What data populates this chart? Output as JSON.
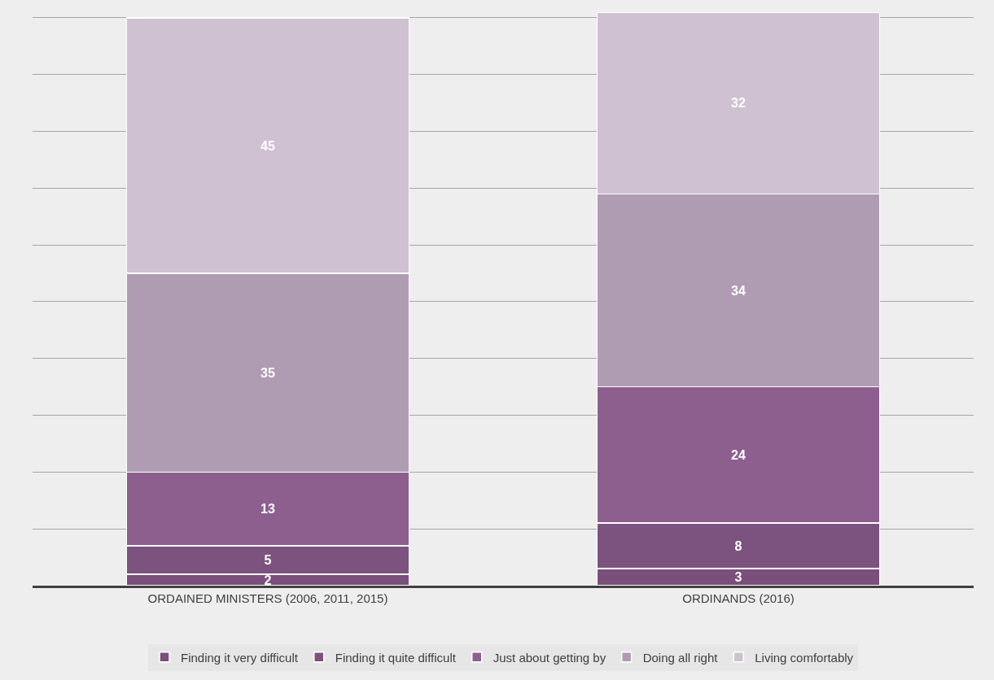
{
  "chart_data": {
    "type": "bar",
    "stacked": true,
    "categories": [
      "ORDAINED MINISTERS (2006, 2011, 2015)",
      "ORDINANDS (2016)"
    ],
    "series": [
      {
        "name": "Finding it very difficult",
        "color": "#7a4f7c",
        "values": [
          2,
          3
        ]
      },
      {
        "name": "Finding it quite difficult",
        "color": "#7c527e",
        "values": [
          5,
          8
        ]
      },
      {
        "name": "Just about getting by",
        "color": "#8d5f8f",
        "values": [
          13,
          24
        ]
      },
      {
        "name": "Doing all right",
        "color": "#b09cb2",
        "values": [
          35,
          34
        ]
      },
      {
        "name": "Living comfortably",
        "color": "#cfc1d1",
        "values": [
          45,
          32
        ]
      }
    ],
    "ylim": [
      0,
      101
    ],
    "tick_labels": "x",
    "grid": "y",
    "data_labels": true,
    "legend": "bottom"
  }
}
